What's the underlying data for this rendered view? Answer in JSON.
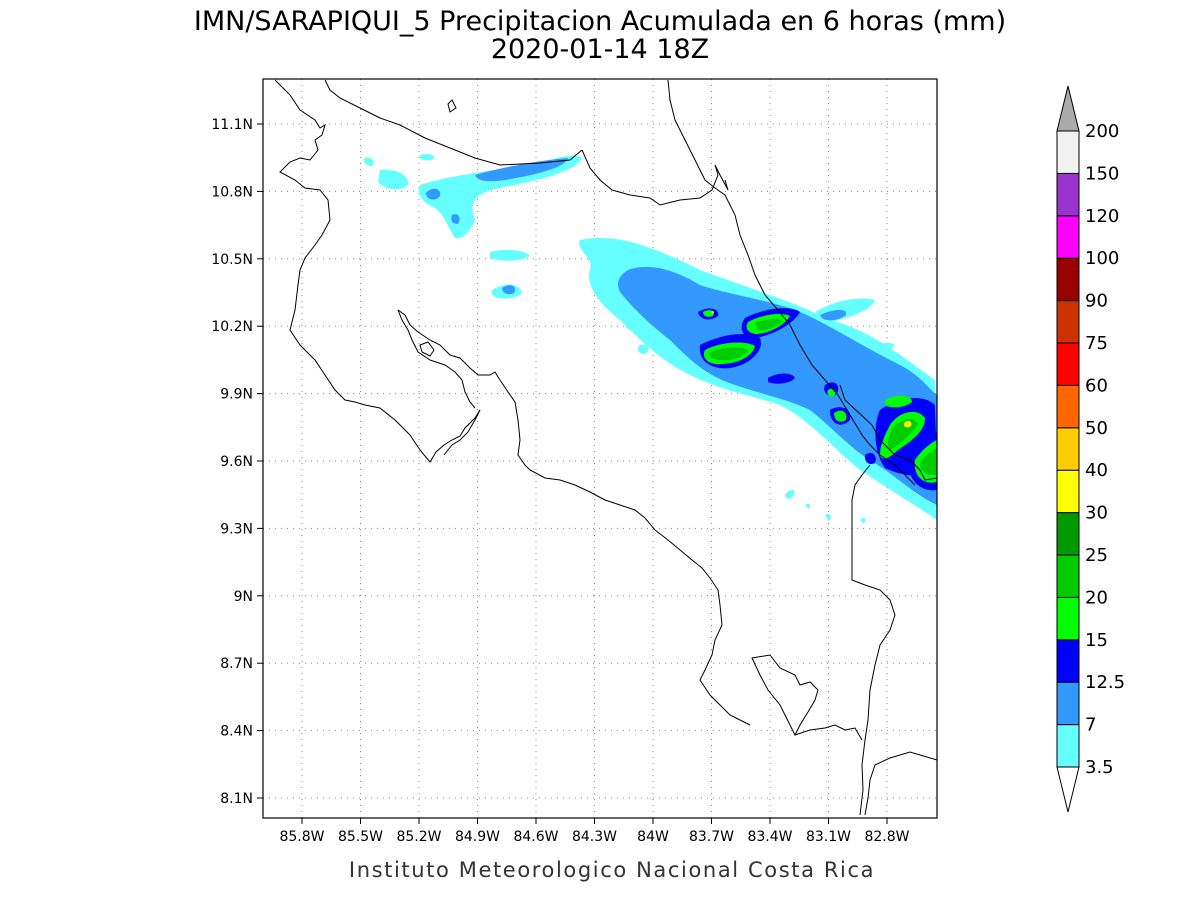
{
  "title": {
    "line1": "IMN/SARAPIQUI_5 Precipitacion Acumulada en 6 horas (mm)",
    "line2": "2020-01-14 18Z"
  },
  "footer": "Instituto Meteorologico Nacional Costa Rica",
  "map": {
    "lat_labels": [
      "11.1N",
      "10.8N",
      "10.5N",
      "10.2N",
      "9.9N",
      "9.6N",
      "9.3N",
      "9N",
      "8.7N",
      "8.4N",
      "8.1N"
    ],
    "lon_labels": [
      "85.8W",
      "85.5W",
      "85.2W",
      "84.9W",
      "84.6W",
      "84.3W",
      "84W",
      "83.7W",
      "83.4W",
      "83.1W",
      "82.8W"
    ]
  },
  "colorbar": {
    "levels": [
      "3.5",
      "7",
      "12.5",
      "15",
      "20",
      "25",
      "30",
      "40",
      "50",
      "60",
      "75",
      "90",
      "100",
      "120",
      "150",
      "200"
    ],
    "colors": [
      "#66ffff",
      "#3399ff",
      "#0000ff",
      "#00ff00",
      "#00cc00",
      "#009900",
      "#ffff00",
      "#ffcc00",
      "#ff6600",
      "#ff0000",
      "#cc3300",
      "#990000",
      "#ff00ff",
      "#9933cc",
      "#f2f2f2"
    ],
    "under_color": "#ffffff",
    "over_color": "#aaaaaa"
  },
  "colors": {
    "light_cyan": "#66ffff",
    "medium_blue": "#3399ff",
    "dark_blue": "#0000ff",
    "bright_green": "#00ff00",
    "green": "#00cc00",
    "dark_green": "#009900",
    "yellow": "#ffff00"
  }
}
